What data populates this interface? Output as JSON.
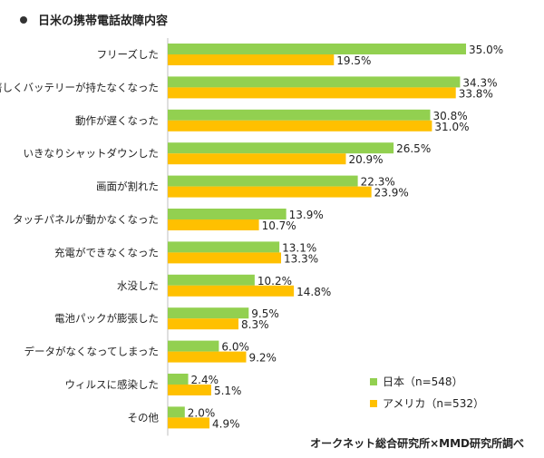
{
  "title": "日米の携帯電話故障内容",
  "source": "オークネット総合研究所×MMD研究所調べ",
  "chart_data": {
    "type": "bar",
    "orientation": "horizontal",
    "categories": [
      "フリーズした",
      "著しくバッテリーが持たなくなった",
      "動作が遅くなった",
      "いきなりシャットダウンした",
      "画面が割れた",
      "タッチパネルが動かなくなった",
      "充電ができなくなった",
      "水没した",
      "電池パックが膨張した",
      "データがなくなってしまった",
      "ウィルスに感染した",
      "その他"
    ],
    "series": [
      {
        "name": "日本（n=548）",
        "color": "#92d050",
        "values": [
          35.0,
          34.3,
          30.8,
          26.5,
          22.3,
          13.9,
          13.1,
          10.2,
          9.5,
          6.0,
          2.4,
          2.0
        ]
      },
      {
        "name": "アメリカ（n=532）",
        "color": "#ffc000",
        "values": [
          19.5,
          33.8,
          31.0,
          20.9,
          23.9,
          10.7,
          13.3,
          14.8,
          8.3,
          9.2,
          5.1,
          4.9
        ]
      }
    ],
    "value_suffix": "%",
    "xlim": [
      0,
      40
    ],
    "grid": false,
    "legend_position": "bottom-right"
  }
}
